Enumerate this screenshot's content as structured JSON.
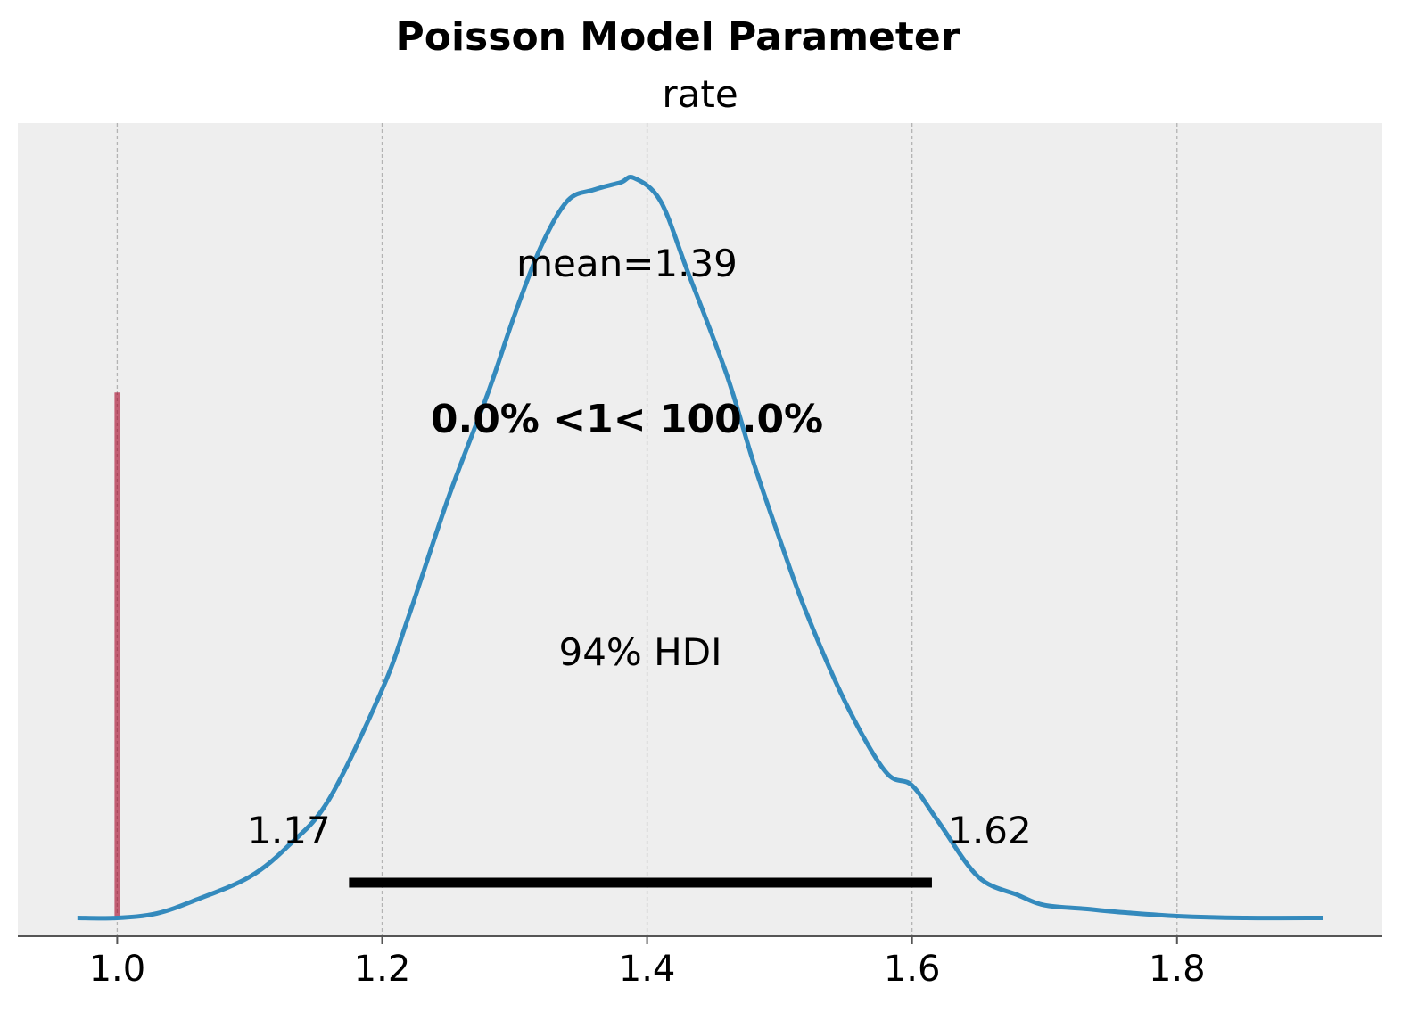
{
  "chart_data": {
    "type": "line",
    "title": "Poisson Model Parameter",
    "subtitle": "rate",
    "xlabel": "",
    "ylabel": "",
    "xlim": [
      0.925,
      1.955
    ],
    "ylim": [
      -0.2,
      8.7
    ],
    "grid": "vertical dashed",
    "x_ticks": [
      1.0,
      1.2,
      1.4,
      1.6,
      1.8
    ],
    "x_tick_labels": [
      "1.0",
      "1.2",
      "1.4",
      "1.6",
      "1.8"
    ],
    "series": [
      {
        "color": "#348abd",
        "x": [
          0.97,
          1.0,
          1.03,
          1.06,
          1.1,
          1.13,
          1.16,
          1.2,
          1.22,
          1.25,
          1.28,
          1.3,
          1.32,
          1.34,
          1.36,
          1.38,
          1.39,
          1.41,
          1.43,
          1.46,
          1.48,
          1.5,
          1.52,
          1.55,
          1.58,
          1.6,
          1.62,
          1.65,
          1.68,
          1.7,
          1.73,
          1.76,
          1.8,
          1.85,
          1.91
        ],
        "y": [
          0.0,
          0.0,
          0.05,
          0.2,
          0.45,
          0.8,
          1.3,
          2.5,
          3.3,
          4.6,
          5.75,
          6.6,
          7.35,
          7.85,
          7.97,
          8.05,
          8.1,
          7.85,
          7.1,
          5.95,
          5.0,
          4.15,
          3.35,
          2.35,
          1.6,
          1.45,
          1.05,
          0.45,
          0.25,
          0.14,
          0.1,
          0.06,
          0.02,
          0.0,
          0.0
        ]
      }
    ],
    "reference": {
      "value": 1,
      "color": "#a60628",
      "label": "0.0% <1< 100.0%",
      "y_top": 5.75
    },
    "mean": {
      "label": "mean=1.39",
      "value": 1.39
    },
    "hdi": {
      "label": "94% HDI",
      "low": 1.175,
      "high": 1.615,
      "low_label": "1.17",
      "high_label": "1.62"
    }
  }
}
